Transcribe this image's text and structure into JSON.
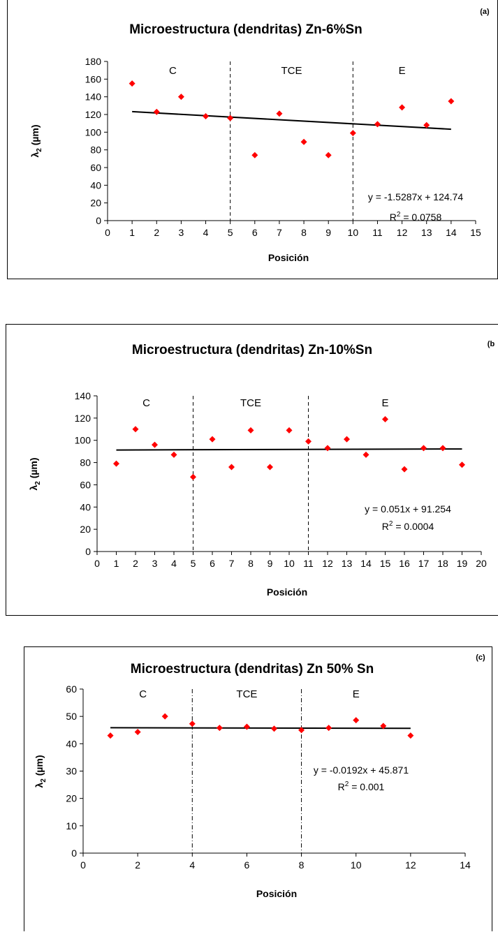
{
  "chart_data": [
    {
      "type": "scatter",
      "panel_tag": "(a)",
      "title": "Microestructura (dendritas) Zn-6%Sn",
      "xlabel": "Posición",
      "ylabel_main": "λ",
      "ylabel_sub": "2",
      "ylabel_unit": " (µm)",
      "xlim": [
        0,
        15
      ],
      "ylim": [
        0,
        180
      ],
      "x_ticks": [
        "0",
        "1",
        "2",
        "3",
        "4",
        "5",
        "6",
        "7",
        "8",
        "9",
        "10",
        "11",
        "12",
        "13",
        "14",
        "15"
      ],
      "y_ticks": [
        "0",
        "20",
        "40",
        "60",
        "80",
        "100",
        "120",
        "140",
        "160",
        "180"
      ],
      "regions": [
        "C",
        "TCE",
        "E"
      ],
      "boundaries": [
        5,
        10
      ],
      "x": [
        1,
        2,
        3,
        4,
        5,
        6,
        7,
        8,
        9,
        10,
        11,
        12,
        13,
        14
      ],
      "y": [
        155,
        123,
        140,
        118,
        116,
        74,
        121,
        89,
        74,
        99,
        109,
        128,
        108,
        135
      ],
      "trend": {
        "slope": -1.5287,
        "intercept": 124.74,
        "x_range": [
          1,
          14
        ]
      },
      "equation": "y = -1.5287x + 124.74",
      "r2_prefix": "R",
      "r2_sup": "2",
      "r2_value": " = 0.0758",
      "marker_color": "#ff0000"
    },
    {
      "type": "scatter",
      "panel_tag": "(b",
      "title": "Microestructura (dendritas) Zn-10%Sn",
      "xlabel": "Posición",
      "ylabel_main": "λ",
      "ylabel_sub": "2",
      "ylabel_unit": " (µm)",
      "xlim": [
        0,
        20
      ],
      "ylim": [
        0,
        140
      ],
      "x_ticks": [
        "0",
        "1",
        "2",
        "3",
        "4",
        "5",
        "6",
        "7",
        "8",
        "9",
        "10",
        "11",
        "12",
        "13",
        "14",
        "15",
        "16",
        "17",
        "18",
        "19",
        "20"
      ],
      "y_ticks": [
        "0",
        "20",
        "40",
        "60",
        "80",
        "100",
        "120",
        "140"
      ],
      "regions": [
        "C",
        "TCE",
        "E"
      ],
      "boundaries": [
        5,
        11
      ],
      "x": [
        1,
        2,
        3,
        4,
        5,
        6,
        7,
        8,
        9,
        10,
        11,
        12,
        13,
        14,
        15,
        16,
        17,
        18,
        19
      ],
      "y": [
        79,
        110,
        96,
        87,
        67,
        101,
        76,
        109,
        76,
        109,
        99,
        93,
        101,
        87,
        119,
        74,
        93,
        93,
        78
      ],
      "trend": {
        "slope": 0.051,
        "intercept": 91.254,
        "x_range": [
          1,
          19
        ]
      },
      "equation": "y = 0.051x + 91.254",
      "r2_prefix": "R",
      "r2_sup": "2",
      "r2_value": " = 0.0004",
      "marker_color": "#ff0000"
    },
    {
      "type": "scatter",
      "panel_tag": "(c)",
      "title": "Microestructura (dendritas) Zn 50% Sn",
      "xlabel": "Posición",
      "ylabel_main": "λ",
      "ylabel_sub": "2",
      "ylabel_unit": " (µm)",
      "xlim": [
        0,
        14
      ],
      "ylim": [
        0,
        60
      ],
      "x_ticks": [
        "0",
        "2",
        "4",
        "6",
        "8",
        "10",
        "12",
        "14"
      ],
      "y_ticks": [
        "0",
        "10",
        "20",
        "30",
        "40",
        "50",
        "60"
      ],
      "regions": [
        "C",
        "TCE",
        "E"
      ],
      "boundaries": [
        4,
        8
      ],
      "x": [
        1,
        2,
        3,
        4,
        5,
        6,
        7,
        8,
        9,
        10,
        11,
        12
      ],
      "y": [
        43,
        44.3,
        50,
        47.3,
        45.8,
        46.2,
        45.5,
        45,
        45.8,
        48.6,
        46.5,
        43
      ],
      "trend": {
        "slope": -0.0192,
        "intercept": 45.871,
        "x_range": [
          1,
          12
        ]
      },
      "equation": "y = -0.0192x + 45.871",
      "r2_prefix": "R",
      "r2_sup": "2",
      "r2_value": " = 0.001",
      "marker_color": "#ff0000"
    }
  ]
}
